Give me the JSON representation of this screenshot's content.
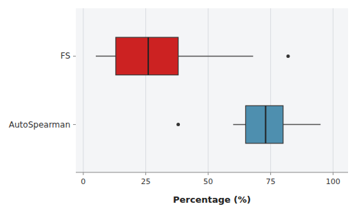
{
  "chart_data": {
    "type": "box",
    "orientation": "horizontal",
    "categories": [
      "FS",
      "AutoSpearman"
    ],
    "boxes": [
      {
        "whisker_low": 5,
        "q1": 13,
        "median": 26,
        "q3": 38,
        "whisker_high": 68,
        "outliers": [
          82
        ]
      },
      {
        "whisker_low": 60,
        "q1": 65,
        "median": 73,
        "q3": 80,
        "whisker_high": 95,
        "outliers": [
          38
        ]
      }
    ],
    "colors": [
      "#CC2222",
      "#4E8FAF"
    ],
    "xlabel": "Percentage (%)",
    "xlim": [
      -3,
      106
    ],
    "xticks": [
      0,
      25,
      50,
      75,
      100
    ],
    "grid": true
  }
}
